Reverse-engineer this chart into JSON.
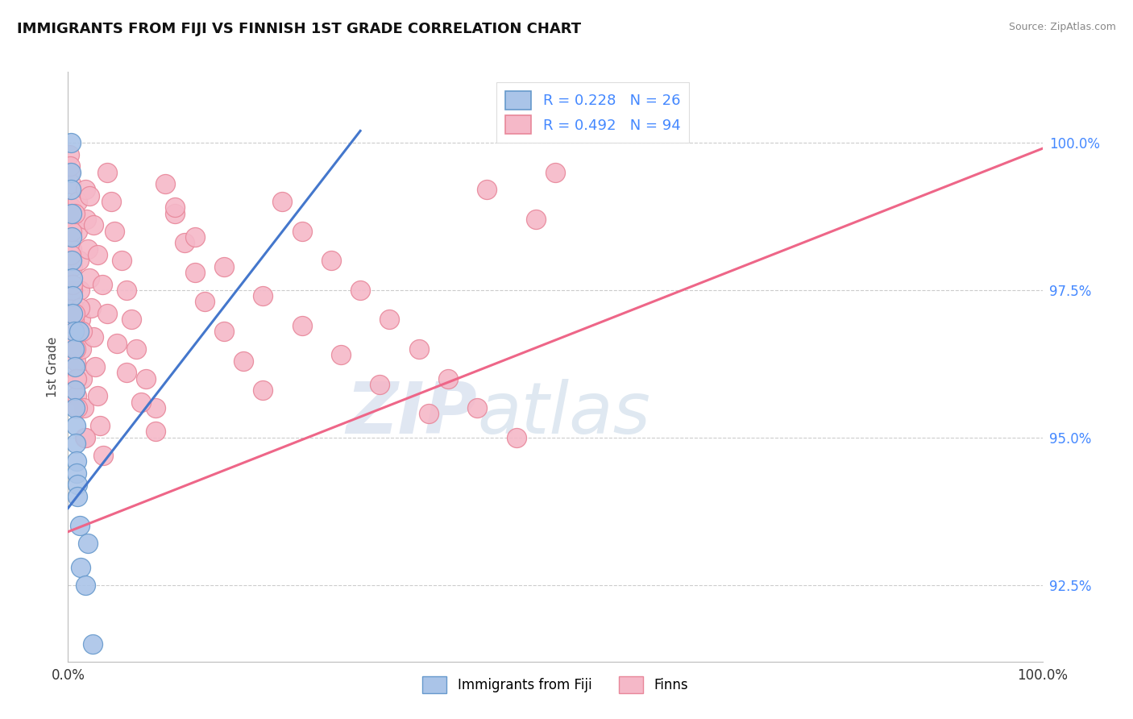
{
  "title": "IMMIGRANTS FROM FIJI VS FINNISH 1ST GRADE CORRELATION CHART",
  "source": "Source: ZipAtlas.com",
  "ylabel": "1st Grade",
  "y_ticks": [
    92.5,
    95.0,
    97.5,
    100.0
  ],
  "x_range": [
    0.0,
    1.0
  ],
  "y_range": [
    91.2,
    101.2
  ],
  "fiji_R": 0.228,
  "fiji_N": 26,
  "finn_R": 0.492,
  "finn_N": 94,
  "fiji_color": "#aac4e8",
  "finn_color": "#f5b8c8",
  "fiji_edge_color": "#6699cc",
  "finn_edge_color": "#e8879a",
  "fiji_line_color": "#4477cc",
  "finn_line_color": "#ee6688",
  "watermark_zip": "ZIP",
  "watermark_atlas": "atlas",
  "legend_label_color": "#4488ff",
  "ytick_color": "#4488ff",
  "fiji_line_x0": 0.0,
  "fiji_line_y0": 93.8,
  "fiji_line_x1": 0.3,
  "fiji_line_y1": 100.2,
  "finn_line_x0": 0.0,
  "finn_line_y0": 93.4,
  "finn_line_x1": 1.0,
  "finn_line_y1": 99.9,
  "fiji_points_x": [
    0.003,
    0.003,
    0.003,
    0.004,
    0.004,
    0.004,
    0.005,
    0.005,
    0.005,
    0.006,
    0.006,
    0.007,
    0.007,
    0.007,
    0.008,
    0.008,
    0.009,
    0.009,
    0.01,
    0.01,
    0.011,
    0.012,
    0.013,
    0.018,
    0.02,
    0.025
  ],
  "fiji_points_y": [
    100.0,
    99.5,
    99.2,
    98.8,
    98.4,
    98.0,
    97.7,
    97.4,
    97.1,
    96.8,
    96.5,
    96.2,
    95.8,
    95.5,
    95.2,
    94.9,
    94.6,
    94.4,
    94.2,
    94.0,
    96.8,
    93.5,
    92.8,
    92.5,
    93.2,
    91.5
  ],
  "finn_points_x": [
    0.001,
    0.002,
    0.003,
    0.003,
    0.004,
    0.004,
    0.005,
    0.005,
    0.006,
    0.007,
    0.007,
    0.008,
    0.008,
    0.009,
    0.01,
    0.01,
    0.011,
    0.012,
    0.013,
    0.014,
    0.015,
    0.016,
    0.017,
    0.018,
    0.019,
    0.02,
    0.022,
    0.024,
    0.026,
    0.028,
    0.03,
    0.033,
    0.036,
    0.04,
    0.044,
    0.048,
    0.055,
    0.06,
    0.065,
    0.07,
    0.08,
    0.09,
    0.1,
    0.11,
    0.12,
    0.13,
    0.14,
    0.16,
    0.18,
    0.2,
    0.22,
    0.24,
    0.27,
    0.3,
    0.33,
    0.36,
    0.39,
    0.42,
    0.46,
    0.5,
    0.003,
    0.004,
    0.005,
    0.006,
    0.007,
    0.008,
    0.009,
    0.01,
    0.012,
    0.015,
    0.018,
    0.022,
    0.026,
    0.03,
    0.035,
    0.04,
    0.05,
    0.06,
    0.075,
    0.09,
    0.11,
    0.13,
    0.16,
    0.2,
    0.24,
    0.28,
    0.32,
    0.37,
    0.43,
    0.48,
    0.002,
    0.003,
    0.005,
    0.007
  ],
  "finn_points_y": [
    99.8,
    99.5,
    99.3,
    98.9,
    98.6,
    98.2,
    97.9,
    97.5,
    97.2,
    96.9,
    96.6,
    96.3,
    96.0,
    95.7,
    99.0,
    98.5,
    98.0,
    97.5,
    97.0,
    96.5,
    96.0,
    95.5,
    95.0,
    99.2,
    98.7,
    98.2,
    97.7,
    97.2,
    96.7,
    96.2,
    95.7,
    95.2,
    94.7,
    99.5,
    99.0,
    98.5,
    98.0,
    97.5,
    97.0,
    96.5,
    96.0,
    95.5,
    99.3,
    98.8,
    98.3,
    97.8,
    97.3,
    96.8,
    96.3,
    95.8,
    99.0,
    98.5,
    98.0,
    97.5,
    97.0,
    96.5,
    96.0,
    95.5,
    95.0,
    99.5,
    98.0,
    98.5,
    97.5,
    97.0,
    98.8,
    96.5,
    96.0,
    95.5,
    97.2,
    96.8,
    95.0,
    99.1,
    98.6,
    98.1,
    97.6,
    97.1,
    96.6,
    96.1,
    95.6,
    95.1,
    98.9,
    98.4,
    97.9,
    97.4,
    96.9,
    96.4,
    95.9,
    95.4,
    99.2,
    98.7,
    99.6,
    98.1,
    97.6,
    97.1
  ]
}
